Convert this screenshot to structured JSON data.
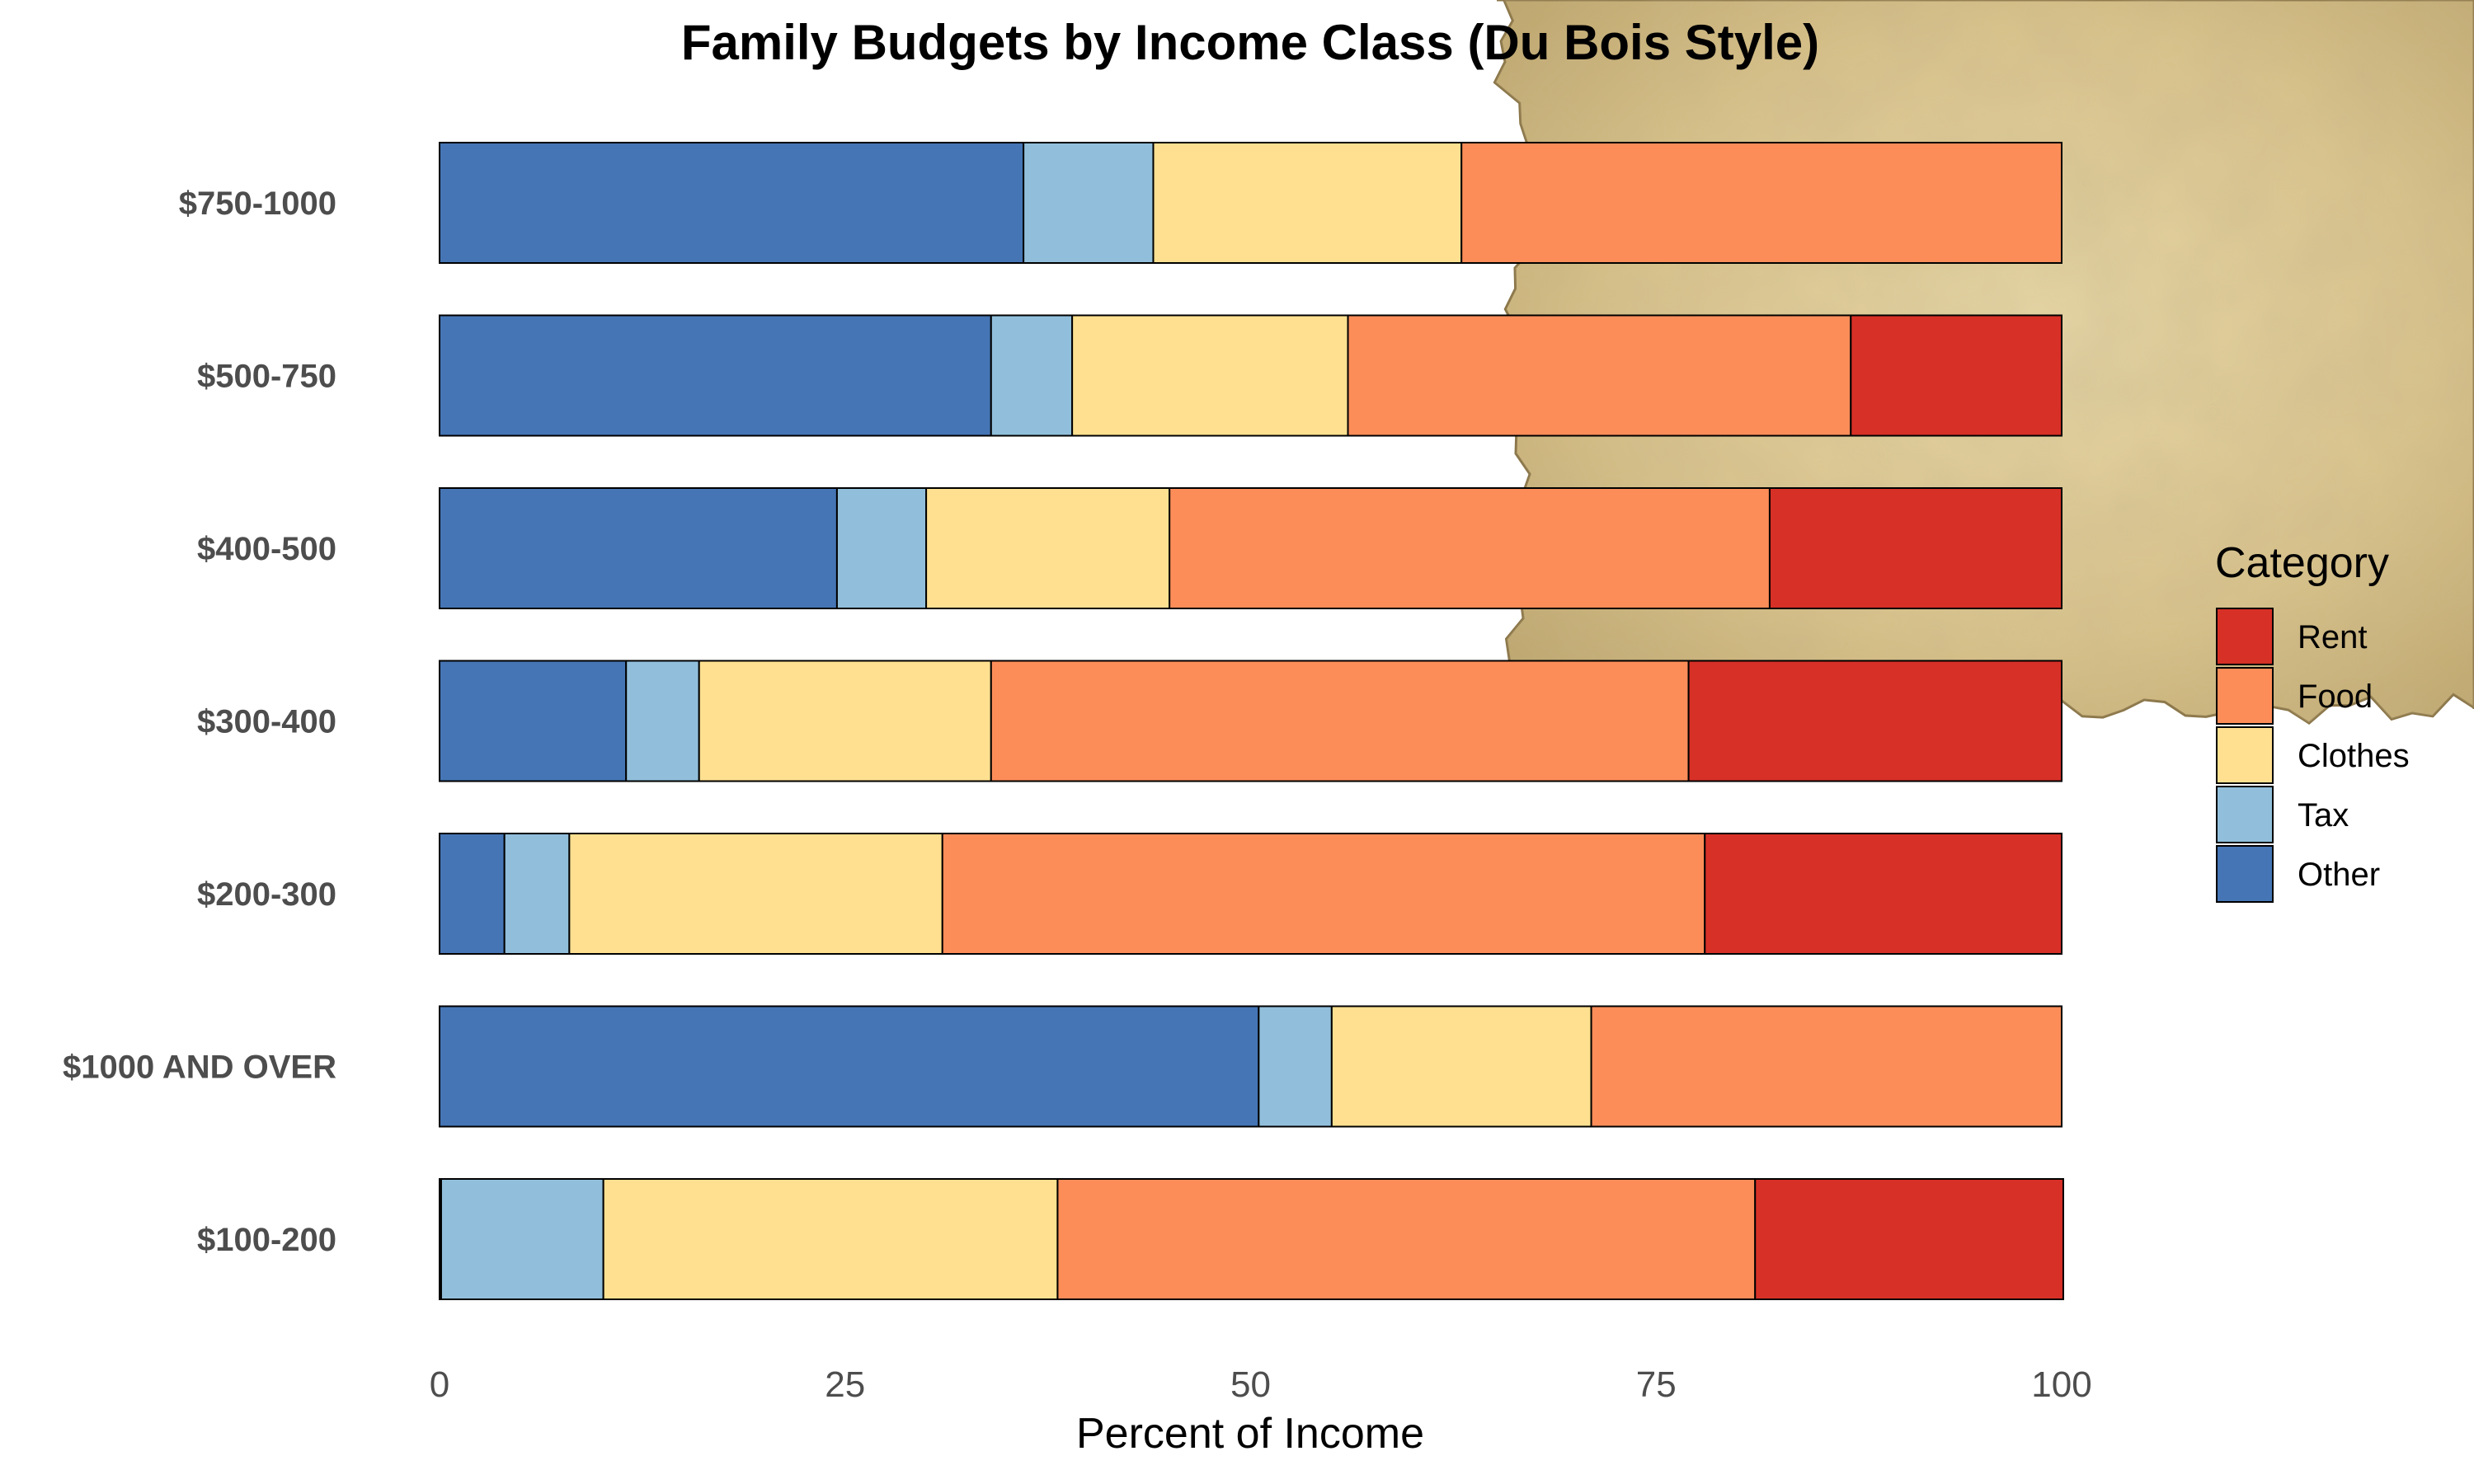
{
  "chart_data": {
    "type": "bar",
    "orientation": "horizontal",
    "stacked": true,
    "title": "Family Budgets by Income Class (Du Bois Style)",
    "xlabel": "Percent of Income",
    "ylabel": "",
    "xlim": [
      0,
      100
    ],
    "xticks": [
      "0",
      "25",
      "50",
      "75",
      "100"
    ],
    "categories": [
      "$750-1000",
      "$500-750",
      "$400-500",
      "$300-400",
      "$200-300",
      "$1000 AND OVER",
      "$100-200"
    ],
    "series": [
      {
        "name": "Other",
        "color": "#4575b4",
        "values": [
          36,
          34,
          24.5,
          11.5,
          4,
          50.5,
          0.1
        ]
      },
      {
        "name": "Tax",
        "color": "#91bfdb",
        "values": [
          8,
          5,
          5.5,
          4.5,
          4,
          4.5,
          10
        ]
      },
      {
        "name": "Clothes",
        "color": "#fee090",
        "values": [
          19,
          17,
          15,
          18,
          23,
          16,
          28
        ]
      },
      {
        "name": "Food",
        "color": "#fc8d59",
        "values": [
          37,
          31,
          37,
          43,
          47,
          29,
          43
        ]
      },
      {
        "name": "Rent",
        "color": "#d73027",
        "values": [
          0,
          13,
          18,
          23,
          22,
          0,
          19
        ]
      }
    ],
    "legend": {
      "title": "Category",
      "position": "right",
      "order": [
        "Rent",
        "Food",
        "Clothes",
        "Tax",
        "Other"
      ]
    },
    "grid": false,
    "background": "parchment"
  }
}
